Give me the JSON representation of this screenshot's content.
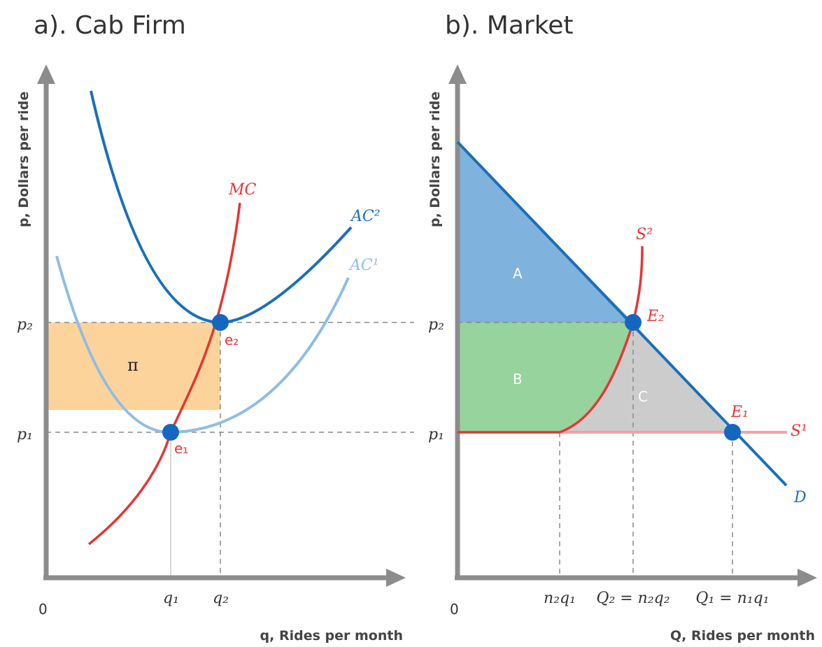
{
  "colors": {
    "axis": "#8c8c8c",
    "mc": "#e53535",
    "ac2": "#1a6fba",
    "ac1": "#8fbde3",
    "profit": "#fcd39b",
    "demand": "#1a6fba",
    "region_a": "#7fb2dc",
    "region_b": "#97d39c",
    "region_c": "#cccccc",
    "point": "#1467c1"
  },
  "chart_data": [
    {
      "type": "line",
      "title": "a). Cab Firm",
      "xlabel": "q, Rides per month",
      "ylabel": "p, Dollars per ride",
      "origin_label": "0",
      "x_ticks": [
        "q₁",
        "q₂"
      ],
      "y_ticks": [
        "p₁",
        "p₂"
      ],
      "series": [
        {
          "name": "MC",
          "x": [
            0.2,
            0.6,
            1.0,
            1.4,
            1.5
          ],
          "y": [
            0.2,
            0.55,
            1.0,
            1.8,
            2.6
          ]
        },
        {
          "name": "AC²",
          "x": [
            0.2,
            0.7,
            1.4,
            2.3
          ],
          "y": [
            3.0,
            1.9,
            1.6,
            2.1
          ]
        },
        {
          "name": "AC¹",
          "x": [
            0.05,
            0.6,
            1.0,
            1.5,
            2.3
          ],
          "y": [
            1.9,
            1.05,
            1.0,
            1.15,
            1.8
          ]
        }
      ],
      "points": [
        {
          "label": "e₁",
          "x": "q₁",
          "y": "p₁"
        },
        {
          "label": "e₂",
          "x": "q₂",
          "y": "p₂"
        }
      ],
      "regions": [
        {
          "label": "π"
        }
      ]
    },
    {
      "type": "line",
      "title": "b). Market",
      "xlabel": "Q, Rides per month",
      "ylabel": "p, Dollars per ride",
      "origin_label": "0",
      "x_ticks": [
        "n₂q₁",
        "Q₂ = n₂q₂",
        "Q₁ = n₁q₁"
      ],
      "y_ticks": [
        "p₁",
        "p₂"
      ],
      "series": [
        {
          "name": "D"
        },
        {
          "name": "S¹"
        },
        {
          "name": "S²"
        }
      ],
      "points": [
        {
          "label": "E₂",
          "x": "Q₂ = n₂q₂",
          "y": "p₂"
        },
        {
          "label": "E₁",
          "x": "Q₁ = n₁q₁",
          "y": "p₁"
        }
      ],
      "regions": [
        {
          "label": "A"
        },
        {
          "label": "B"
        },
        {
          "label": "C"
        }
      ]
    }
  ]
}
